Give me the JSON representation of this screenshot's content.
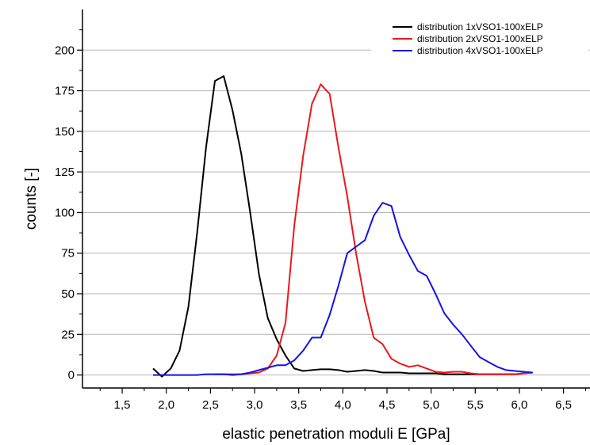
{
  "chart_data": {
    "type": "line",
    "xlabel": "elastic penetration moduli E [GPa]",
    "ylabel": "counts [-]",
    "xlim": [
      1.05,
      6.8
    ],
    "ylim": [
      -8,
      225
    ],
    "x_ticks": [
      1.5,
      2.0,
      2.5,
      3.0,
      3.5,
      4.0,
      4.5,
      5.0,
      5.5,
      6.0,
      6.5
    ],
    "x_tick_labels": [
      "1,5",
      "2,0",
      "2,5",
      "3,0",
      "3,5",
      "4,0",
      "4,5",
      "5,0",
      "5,5",
      "6,0",
      "6,5"
    ],
    "y_ticks": [
      0,
      25,
      50,
      75,
      100,
      125,
      150,
      175,
      200
    ],
    "y_tick_labels": [
      "0",
      "25",
      "50",
      "75",
      "100",
      "125",
      "150",
      "175",
      "200"
    ],
    "grid": "horizontal",
    "legend_position": "top-right",
    "series": [
      {
        "name": "distribution 1xVSO1-100xELP",
        "color": "#000000",
        "points": [
          [
            1.85,
            4
          ],
          [
            1.95,
            -1
          ],
          [
            2.05,
            4
          ],
          [
            2.15,
            15
          ],
          [
            2.25,
            42
          ],
          [
            2.35,
            88
          ],
          [
            2.45,
            140
          ],
          [
            2.55,
            181
          ],
          [
            2.65,
            184
          ],
          [
            2.75,
            163
          ],
          [
            2.85,
            136
          ],
          [
            2.95,
            100
          ],
          [
            3.05,
            62
          ],
          [
            3.15,
            35
          ],
          [
            3.25,
            22
          ],
          [
            3.35,
            12
          ],
          [
            3.45,
            4
          ],
          [
            3.55,
            2.5
          ],
          [
            3.65,
            3
          ],
          [
            3.75,
            3.5
          ],
          [
            3.85,
            3.5
          ],
          [
            3.95,
            3
          ],
          [
            4.05,
            2
          ],
          [
            4.15,
            2.5
          ],
          [
            4.25,
            3
          ],
          [
            4.35,
            2.5
          ],
          [
            4.45,
            1.5
          ],
          [
            4.55,
            1.5
          ],
          [
            4.65,
            1.5
          ],
          [
            4.75,
            1
          ],
          [
            4.85,
            1
          ],
          [
            4.95,
            1
          ],
          [
            5.05,
            1
          ],
          [
            5.15,
            0.5
          ],
          [
            5.25,
            0.5
          ],
          [
            5.35,
            0.5
          ],
          [
            5.45,
            0.5
          ],
          [
            5.55,
            0.5
          ],
          [
            5.65,
            0.5
          ],
          [
            5.75,
            0.5
          ],
          [
            5.85,
            0.5
          ],
          [
            5.95,
            0.5
          ],
          [
            6.05,
            1
          ],
          [
            6.15,
            1.5
          ]
        ]
      },
      {
        "name": "distribution 2xVSO1-100xELP",
        "color": "#e8191e",
        "points": [
          [
            2.55,
            0.5
          ],
          [
            2.65,
            0.5
          ],
          [
            2.75,
            0.5
          ],
          [
            2.85,
            0.5
          ],
          [
            2.95,
            1
          ],
          [
            3.05,
            1.5
          ],
          [
            3.15,
            4
          ],
          [
            3.25,
            12
          ],
          [
            3.35,
            32
          ],
          [
            3.45,
            92
          ],
          [
            3.55,
            135
          ],
          [
            3.65,
            167
          ],
          [
            3.75,
            179
          ],
          [
            3.85,
            173
          ],
          [
            3.95,
            140
          ],
          [
            4.05,
            110
          ],
          [
            4.15,
            75
          ],
          [
            4.25,
            45
          ],
          [
            4.35,
            23
          ],
          [
            4.45,
            19
          ],
          [
            4.55,
            10
          ],
          [
            4.65,
            7
          ],
          [
            4.75,
            5
          ],
          [
            4.85,
            6
          ],
          [
            4.95,
            4
          ],
          [
            5.05,
            2
          ],
          [
            5.15,
            1.5
          ],
          [
            5.25,
            2
          ],
          [
            5.35,
            2
          ],
          [
            5.45,
            1
          ],
          [
            5.55,
            0.5
          ],
          [
            5.65,
            0.5
          ],
          [
            5.75,
            0.5
          ],
          [
            5.85,
            0.5
          ],
          [
            5.95,
            0.5
          ],
          [
            6.05,
            1
          ],
          [
            6.15,
            1.5
          ]
        ]
      },
      {
        "name": "distribution 4xVSO1-100xELP",
        "color": "#1414e6",
        "points": [
          [
            1.85,
            0
          ],
          [
            1.95,
            0
          ],
          [
            2.05,
            0
          ],
          [
            2.15,
            0
          ],
          [
            2.25,
            0
          ],
          [
            2.35,
            0
          ],
          [
            2.45,
            0.5
          ],
          [
            2.55,
            0.5
          ],
          [
            2.65,
            0.5
          ],
          [
            2.75,
            0
          ],
          [
            2.85,
            0.5
          ],
          [
            2.95,
            1.5
          ],
          [
            3.05,
            3
          ],
          [
            3.15,
            4.5
          ],
          [
            3.25,
            6
          ],
          [
            3.35,
            6
          ],
          [
            3.45,
            9
          ],
          [
            3.55,
            15
          ],
          [
            3.65,
            23
          ],
          [
            3.75,
            23
          ],
          [
            3.85,
            37
          ],
          [
            3.95,
            55
          ],
          [
            4.05,
            75
          ],
          [
            4.15,
            79
          ],
          [
            4.25,
            83
          ],
          [
            4.35,
            98
          ],
          [
            4.45,
            106
          ],
          [
            4.55,
            104
          ],
          [
            4.65,
            85
          ],
          [
            4.75,
            74
          ],
          [
            4.85,
            64
          ],
          [
            4.95,
            61
          ],
          [
            5.05,
            50
          ],
          [
            5.15,
            38
          ],
          [
            5.25,
            31
          ],
          [
            5.35,
            25
          ],
          [
            5.45,
            18
          ],
          [
            5.55,
            11
          ],
          [
            5.65,
            8
          ],
          [
            5.75,
            5
          ],
          [
            5.85,
            3
          ],
          [
            5.95,
            2.5
          ],
          [
            6.05,
            2
          ],
          [
            6.15,
            1.5
          ]
        ]
      }
    ]
  }
}
